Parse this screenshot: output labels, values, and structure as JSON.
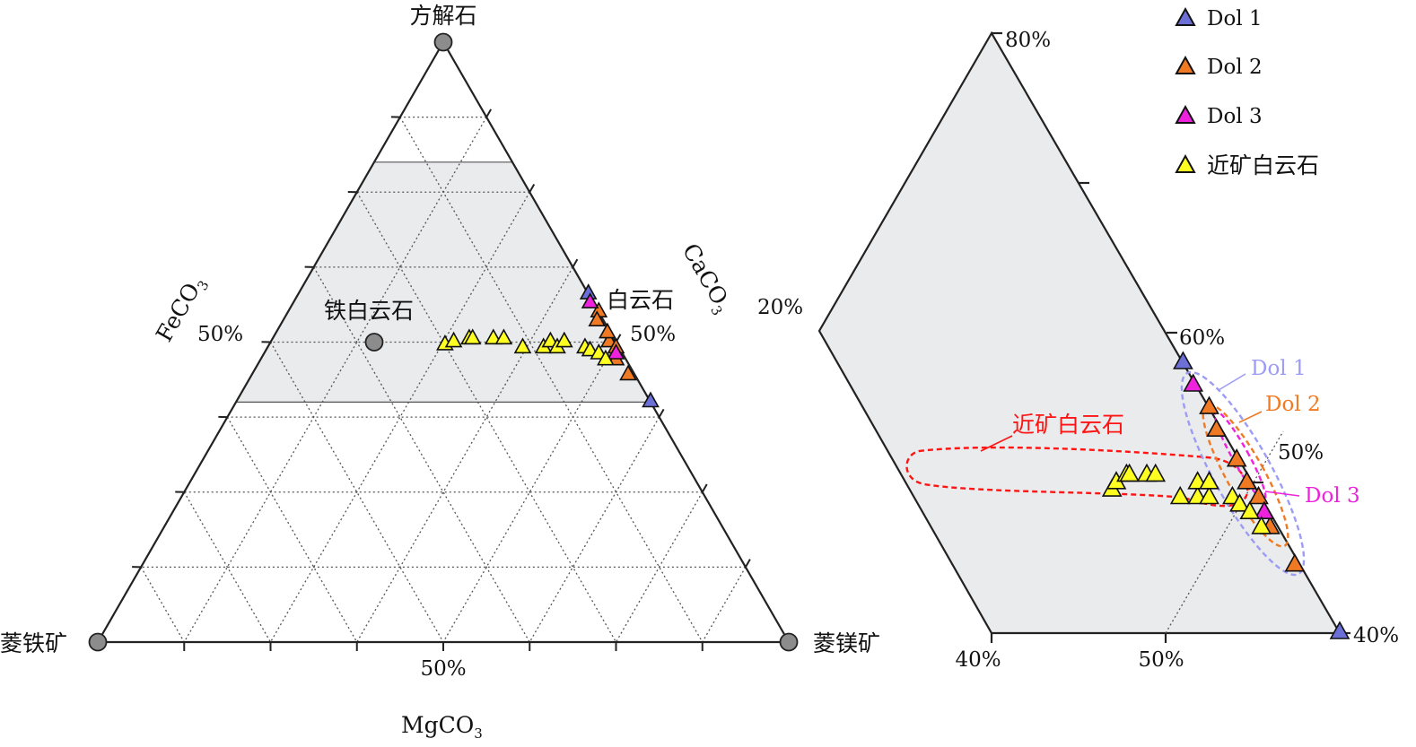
{
  "colors": {
    "dol1": "#6b6fd6",
    "dol2": "#f07a24",
    "dol3": "#ee22dd",
    "near": "#ffff22",
    "zoom_region": "#e9ebec",
    "end_member": "#8c8c8c",
    "callout_red": "#ff1414",
    "callout_dol1": "#9d9cf5",
    "callout_dol2": "#f07a24",
    "callout_dol3": "#ee22dd"
  },
  "chart_data": [
    {
      "type": "scatter",
      "diagram": "ternary",
      "components": [
        "CaCO3",
        "MgCO3",
        "FeCO3"
      ],
      "vertices": {
        "top": "方解石",
        "left": "菱铁矿",
        "right": "菱镁矿"
      },
      "axis_labels": {
        "left": {
          "main": "FeCO",
          "sub": "3"
        },
        "right": {
          "main": "CaCO",
          "sub": "3"
        },
        "bottom": {
          "main": "MgCO",
          "sub": "3"
        }
      },
      "tick_labels": {
        "left": "50%",
        "right": "50%",
        "bottom": "50%"
      },
      "end_members": [
        {
          "label": "方解石",
          "ca": 1,
          "mg": 0,
          "fe": 0
        },
        {
          "label": "菱铁矿",
          "ca": 0,
          "mg": 0,
          "fe": 1
        },
        {
          "label": "菱镁矿",
          "ca": 0,
          "mg": 1,
          "fe": 0
        },
        {
          "label": "铁白云石",
          "ca": 0.5,
          "mg": 0.15,
          "fe": 0.35
        }
      ],
      "annotations": [
        "铁白云石",
        "白云石"
      ],
      "zoom_region": {
        "ca": [
          0.4,
          0.8
        ],
        "fe": [
          0,
          0.6
        ]
      },
      "grid": true,
      "series": [
        {
          "name": "Dol 1",
          "points": [
            [
              0.58,
              0.42,
              0.0
            ],
            [
              0.4,
              0.6,
              0.0
            ]
          ]
        },
        {
          "name": "Dol 2",
          "points": [
            [
              0.55,
              0.45,
              0.0
            ],
            [
              0.535,
              0.455,
              0.01
            ],
            [
              0.5,
              0.49,
              0.01
            ],
            [
              0.49,
              0.505,
              0.005
            ],
            [
              0.47,
              0.515,
              0.015
            ],
            [
              0.445,
              0.545,
              0.01
            ],
            [
              0.515,
              0.48,
              0.005
            ]
          ]
        },
        {
          "name": "Dol 3",
          "points": [
            [
              0.565,
              0.43,
              0.005
            ],
            [
              0.48,
              0.51,
              0.01
            ]
          ]
        },
        {
          "name": "近矿白云石",
          "points": [
            [
              0.495,
              0.255,
              0.25
            ],
            [
              0.5,
              0.265,
              0.235
            ],
            [
              0.505,
              0.285,
              0.21
            ],
            [
              0.505,
              0.29,
              0.205
            ],
            [
              0.505,
              0.32,
              0.175
            ],
            [
              0.505,
              0.335,
              0.16
            ],
            [
              0.49,
              0.37,
              0.14
            ],
            [
              0.49,
              0.4,
              0.11
            ],
            [
              0.5,
              0.405,
              0.095
            ],
            [
              0.49,
              0.42,
              0.09
            ],
            [
              0.5,
              0.425,
              0.075
            ],
            [
              0.49,
              0.46,
              0.05
            ],
            [
              0.485,
              0.47,
              0.045
            ],
            [
              0.48,
              0.485,
              0.035
            ],
            [
              0.47,
              0.5,
              0.03
            ]
          ]
        }
      ]
    },
    {
      "type": "scatter",
      "diagram": "ternary-zoom",
      "tick_labels": {
        "top": "80%",
        "left": "20%",
        "right_mid": "60%",
        "right_bottom": "40%",
        "bottom_left": "40%",
        "bottom_mid": "50%",
        "inner": "50%"
      },
      "callouts": [
        "Dol 1",
        "Dol 2",
        "Dol 3",
        "近矿白云石"
      ],
      "legend": {
        "placement": "top-right",
        "entries": [
          "Dol 1",
          "Dol 2",
          "Dol 3",
          "近矿白云石"
        ]
      }
    }
  ]
}
